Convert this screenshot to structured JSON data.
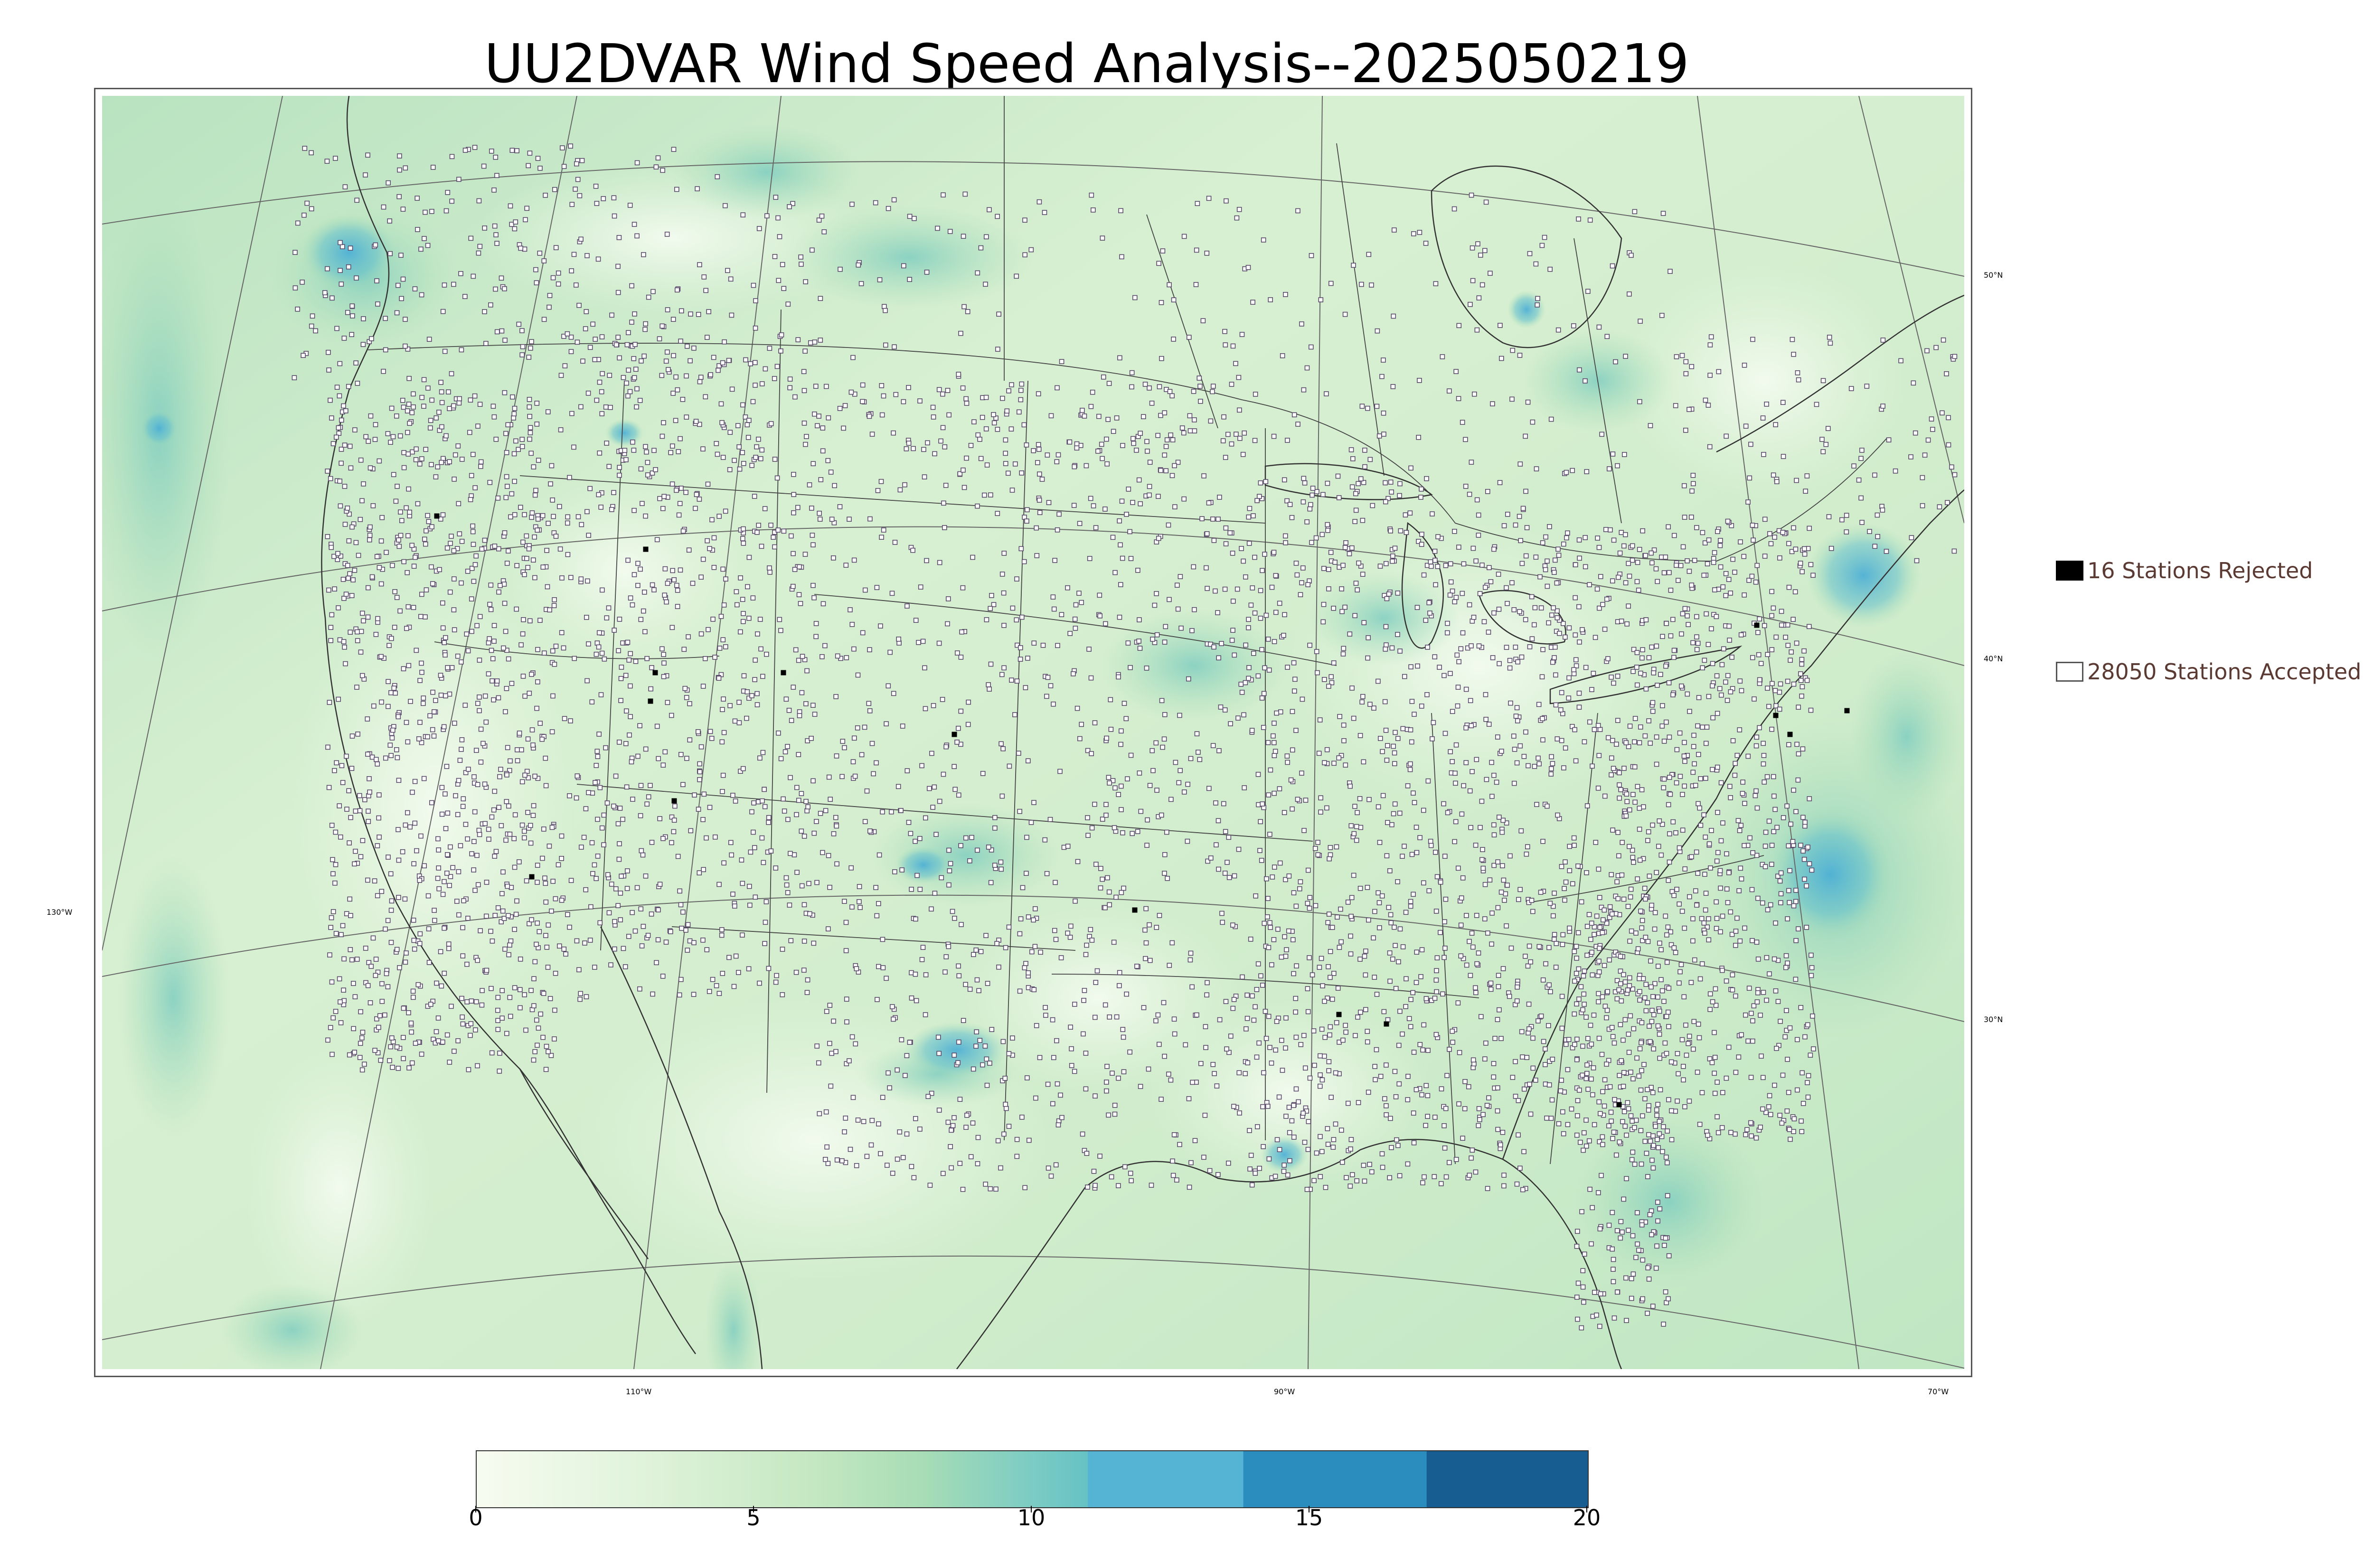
{
  "title": "UU2DVAR Wind Speed Analysis--2025050219",
  "lon_labels": [
    "130°W",
    "110°W",
    "90°W",
    "70°W"
  ],
  "lat_labels": [
    "50°N",
    "40°N",
    "30°N"
  ],
  "legend": {
    "rejected": {
      "count": 16,
      "label": "16 Stations Rejected"
    },
    "accepted": {
      "count": 28050,
      "label": "28050 Stations Accepted"
    }
  },
  "colorbar": {
    "min": 0,
    "max": 20,
    "ticks": [
      "0",
      "5",
      "10",
      "15",
      "20"
    ],
    "stops": [
      {
        "value": 0,
        "color": "#f7fcf0"
      },
      {
        "value": 3,
        "color": "#e0f3db"
      },
      {
        "value": 6,
        "color": "#c5e8c2"
      },
      {
        "value": 8,
        "color": "#a8ddb5"
      },
      {
        "value": 10,
        "color": "#7bccc4"
      },
      {
        "value": 11,
        "color": "#66c2c4"
      }
    ],
    "blocks": [
      {
        "from": 11,
        "to": 13.8,
        "color": "#55b3d4"
      },
      {
        "from": 13.8,
        "to": 17.1,
        "color": "#2b8cbe"
      },
      {
        "from": 17.1,
        "to": 20,
        "color": "#175d91"
      }
    ]
  },
  "colors": {
    "land": "#d5efd0",
    "ocean": "#c2e6c0",
    "strong_wind": "#5ab4d4",
    "station_outline": "#5a4a6a"
  }
}
